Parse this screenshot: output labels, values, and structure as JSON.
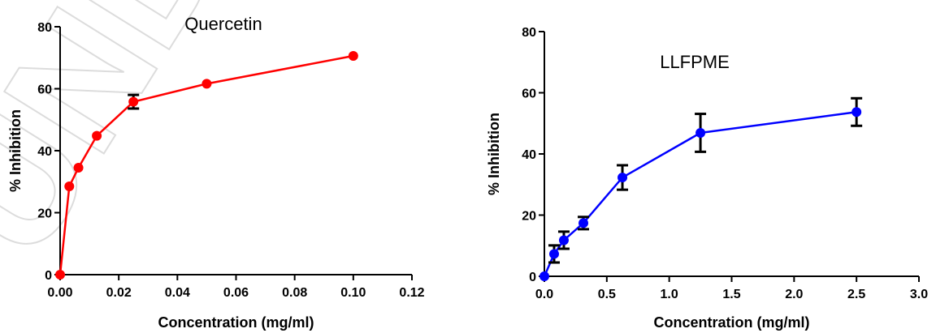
{
  "watermark": "UNDER",
  "chart_data": [
    {
      "type": "line",
      "title": "Quercetin",
      "xlabel": "Concentration (mg/ml)",
      "ylabel": "% Inhibition",
      "xlim": [
        0,
        0.12
      ],
      "ylim": [
        0,
        80
      ],
      "xticks": [
        "0.00",
        "0.02",
        "0.04",
        "0.06",
        "0.08",
        "0.10",
        "0.12"
      ],
      "yticks": [
        "0",
        "20",
        "40",
        "60",
        "80"
      ],
      "grid": false,
      "color": "#ff0000",
      "series": [
        {
          "x": [
            0,
            0.003125,
            0.00625,
            0.0125,
            0.025,
            0.05,
            0.1
          ],
          "y": [
            0,
            28.5,
            34.5,
            44.8,
            55.8,
            61.6,
            70.6
          ],
          "err": [
            0,
            0,
            0,
            0,
            2.2,
            0,
            0
          ]
        }
      ]
    },
    {
      "type": "line",
      "title": "LLFPME",
      "xlabel": "Concentration (mg/ml)",
      "ylabel": "% Inhibition",
      "xlim": [
        0,
        3.0
      ],
      "ylim": [
        0,
        80
      ],
      "xticks": [
        "0.0",
        "0.5",
        "1.0",
        "1.5",
        "2.0",
        "2.5",
        "3.0"
      ],
      "yticks": [
        "0",
        "20",
        "40",
        "60",
        "80"
      ],
      "grid": false,
      "color": "#0000ff",
      "series": [
        {
          "x": [
            0,
            0.078,
            0.156,
            0.3125,
            0.625,
            1.25,
            2.5
          ],
          "y": [
            0,
            7.3,
            11.8,
            17.4,
            32.3,
            46.9,
            53.7
          ],
          "err": [
            0,
            2.8,
            2.8,
            2.0,
            4.0,
            6.2,
            4.5
          ]
        }
      ]
    }
  ]
}
